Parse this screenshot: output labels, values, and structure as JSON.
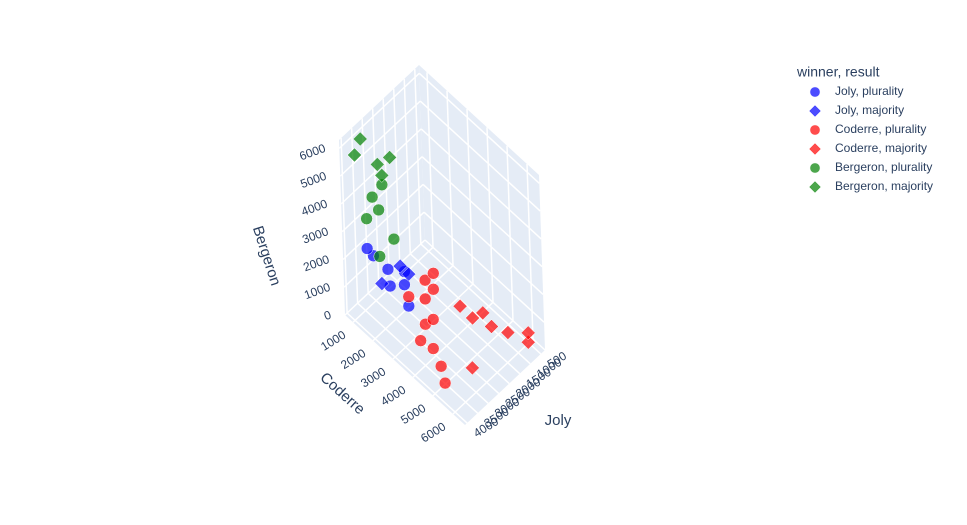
{
  "chart_data": {
    "type": "scatter3d",
    "legend_title": "winner, result",
    "x_label": "Joly",
    "y_label": "Coderre",
    "z_label": "Bergeron",
    "xlim": [
      300,
      4100
    ],
    "ylim": [
      600,
      6600
    ],
    "zlim": [
      0,
      6300
    ],
    "xticks": [
      500,
      1000,
      1500,
      2000,
      2500,
      3000,
      3500,
      4000
    ],
    "yticks": [
      1000,
      2000,
      3000,
      4000,
      5000,
      6000
    ],
    "zticks": [
      0,
      1000,
      2000,
      3000,
      4000,
      5000,
      6000
    ],
    "series": [
      {
        "name": "Joly, plurality",
        "color": "#0000ff",
        "symbol": "circle",
        "x": [
          3300,
          3500,
          3100,
          3600,
          2900,
          3200,
          3400
        ],
        "y": [
          2000,
          1500,
          2600,
          1300,
          2400,
          2900,
          2200
        ],
        "z": [
          2000,
          2300,
          1700,
          2500,
          1900,
          1200,
          1600
        ]
      },
      {
        "name": "Joly, majority",
        "color": "#0000ff",
        "symbol": "diamond",
        "x": [
          3600,
          3000,
          2800
        ],
        "y": [
          2000,
          2300,
          2500
        ],
        "z": [
          1700,
          2100,
          1800
        ]
      },
      {
        "name": "Coderre, plurality",
        "color": "#ff0000",
        "symbol": "circle",
        "x": [
          3000,
          2700,
          2500,
          3300,
          3500,
          3700,
          2900,
          2400,
          3100,
          2200,
          3600
        ],
        "y": [
          3500,
          3200,
          3000,
          4200,
          4800,
          5200,
          3800,
          3300,
          2800,
          3100,
          3900
        ],
        "z": [
          800,
          1300,
          1700,
          600,
          500,
          300,
          1100,
          1500,
          1400,
          1800,
          900
        ]
      },
      {
        "name": "Coderre, majority",
        "color": "#ff0000",
        "symbol": "diamond",
        "x": [
          1000,
          1300,
          700,
          1800,
          2000,
          600,
          2600,
          1500
        ],
        "y": [
          5500,
          5000,
          6200,
          4600,
          4200,
          6100,
          5400,
          4800
        ],
        "z": [
          400,
          500,
          300,
          900,
          1200,
          500,
          200,
          1000
        ]
      },
      {
        "name": "Bergeron, plurality",
        "color": "#008000",
        "symbol": "circle",
        "x": [
          3200,
          3400,
          3000,
          2800,
          3300,
          3100
        ],
        "y": [
          1200,
          1100,
          1500,
          1800,
          1600,
          1400
        ],
        "z": [
          4000,
          3300,
          4500,
          2600,
          2200,
          3600
        ]
      },
      {
        "name": "Bergeron, majority",
        "color": "#008000",
        "symbol": "diamond",
        "x": [
          3300,
          3500,
          3000,
          2900,
          2600
        ],
        "y": [
          800,
          700,
          1300,
          1400,
          1500
        ],
        "z": [
          5900,
          5400,
          5100,
          4700,
          5200
        ]
      }
    ]
  }
}
